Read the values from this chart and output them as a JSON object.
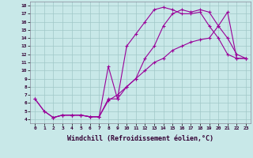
{
  "background_color": "#c8e8e8",
  "grid_color": "#a0c8c8",
  "line_color": "#990099",
  "marker_color": "#990099",
  "xlabel": "Windchill (Refroidissement éolien,°C)",
  "xlabel_fontsize": 6.0,
  "xlim": [
    -0.5,
    23.5
  ],
  "ylim": [
    3.5,
    18.5
  ],
  "yticks": [
    4,
    5,
    6,
    7,
    8,
    9,
    10,
    11,
    12,
    13,
    14,
    15,
    16,
    17,
    18
  ],
  "xticks": [
    0,
    1,
    2,
    3,
    4,
    5,
    6,
    7,
    8,
    9,
    10,
    11,
    12,
    13,
    14,
    15,
    16,
    17,
    18,
    19,
    20,
    21,
    22,
    23
  ],
  "series": [
    {
      "x": [
        0,
        1,
        2,
        3,
        4,
        5,
        6,
        7,
        8,
        9,
        10,
        11,
        12,
        13,
        14,
        15,
        16,
        17,
        18,
        19,
        20,
        21,
        22,
        23
      ],
      "y": [
        6.5,
        5.0,
        4.2,
        4.5,
        4.5,
        4.5,
        4.3,
        4.3,
        10.5,
        6.5,
        13.0,
        14.5,
        16.0,
        17.5,
        17.8,
        17.5,
        17.0,
        17.0,
        17.2,
        15.5,
        14.0,
        12.0,
        11.5,
        11.5
      ]
    },
    {
      "x": [
        0,
        1,
        2,
        3,
        4,
        5,
        6,
        7,
        8,
        9,
        10,
        11,
        12,
        13,
        14,
        15,
        16,
        17,
        18,
        19,
        20,
        21,
        22,
        23
      ],
      "y": [
        6.5,
        5.0,
        4.2,
        4.5,
        4.5,
        4.5,
        4.3,
        4.3,
        6.5,
        6.5,
        8.0,
        9.0,
        11.5,
        13.0,
        15.5,
        17.0,
        17.5,
        17.2,
        17.5,
        17.2,
        15.5,
        14.0,
        12.0,
        11.5
      ]
    },
    {
      "x": [
        2,
        3,
        4,
        5,
        6,
        7,
        8,
        9,
        10,
        11,
        12,
        13,
        14,
        15,
        16,
        17,
        18,
        19,
        20,
        21,
        22,
        23
      ],
      "y": [
        4.2,
        4.5,
        4.5,
        4.5,
        4.3,
        4.3,
        6.3,
        7.0,
        8.0,
        9.0,
        10.0,
        11.0,
        11.5,
        12.5,
        13.0,
        13.5,
        13.8,
        14.0,
        15.5,
        17.2,
        11.5,
        11.5
      ]
    }
  ]
}
